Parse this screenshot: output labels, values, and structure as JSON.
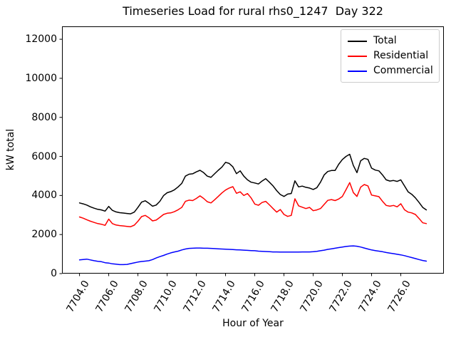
{
  "chart_data": {
    "type": "line",
    "title": "Timeseries Load for rural rhs0_1247  Day 322",
    "xlabel": "Hour of Year",
    "ylabel": "kW total",
    "xlim": [
      7702.8,
      7728.95
    ],
    "ylim": [
      0,
      12660
    ],
    "grid": false,
    "legend_position": "upper right",
    "x_start": 7704.0,
    "x_step": 0.25,
    "x_ticks": [
      {
        "value": 7704,
        "label": "7704.0"
      },
      {
        "value": 7706,
        "label": "7706.0"
      },
      {
        "value": 7708,
        "label": "7708.0"
      },
      {
        "value": 7710,
        "label": "7710.0"
      },
      {
        "value": 7712,
        "label": "7712.0"
      },
      {
        "value": 7714,
        "label": "7714.0"
      },
      {
        "value": 7716,
        "label": "7716.0"
      },
      {
        "value": 7718,
        "label": "7718.0"
      },
      {
        "value": 7720,
        "label": "7720.0"
      },
      {
        "value": 7722,
        "label": "7722.0"
      },
      {
        "value": 7724,
        "label": "7724.0"
      },
      {
        "value": 7726,
        "label": "7726.0"
      }
    ],
    "y_ticks": [
      {
        "value": 0,
        "label": "0"
      },
      {
        "value": 2000,
        "label": "2000"
      },
      {
        "value": 4000,
        "label": "4000"
      },
      {
        "value": 6000,
        "label": "6000"
      },
      {
        "value": 8000,
        "label": "8000"
      },
      {
        "value": 10000,
        "label": "10000"
      },
      {
        "value": 12000,
        "label": "12000"
      }
    ],
    "series": [
      {
        "name": "Total",
        "color": "#000000",
        "values": [
          3620,
          3570,
          3510,
          3420,
          3350,
          3290,
          3260,
          3200,
          3440,
          3240,
          3160,
          3120,
          3100,
          3080,
          3060,
          3150,
          3390,
          3660,
          3730,
          3600,
          3450,
          3510,
          3700,
          3990,
          4140,
          4200,
          4290,
          4440,
          4620,
          4990,
          5090,
          5110,
          5210,
          5290,
          5170,
          4990,
          4930,
          5110,
          5290,
          5450,
          5700,
          5640,
          5470,
          5120,
          5260,
          4990,
          4800,
          4680,
          4640,
          4590,
          4740,
          4860,
          4680,
          4490,
          4250,
          4050,
          3950,
          4070,
          4100,
          4750,
          4440,
          4480,
          4420,
          4380,
          4310,
          4400,
          4680,
          5050,
          5230,
          5280,
          5280,
          5600,
          5840,
          6000,
          6110,
          5540,
          5170,
          5780,
          5900,
          5850,
          5400,
          5300,
          5260,
          5050,
          4800,
          4740,
          4770,
          4720,
          4800,
          4490,
          4190,
          4060,
          3880,
          3640,
          3390,
          3260
        ]
      },
      {
        "name": "Residential",
        "color": "#ff0000",
        "values": [
          2900,
          2840,
          2760,
          2680,
          2620,
          2560,
          2530,
          2470,
          2790,
          2560,
          2490,
          2460,
          2440,
          2420,
          2400,
          2480,
          2680,
          2920,
          2980,
          2860,
          2700,
          2740,
          2880,
          3030,
          3090,
          3110,
          3170,
          3270,
          3390,
          3700,
          3760,
          3740,
          3850,
          3980,
          3850,
          3680,
          3620,
          3780,
          3950,
          4130,
          4280,
          4380,
          4450,
          4110,
          4190,
          4000,
          4100,
          3880,
          3560,
          3500,
          3640,
          3700,
          3520,
          3330,
          3150,
          3280,
          3030,
          2930,
          2980,
          3830,
          3470,
          3400,
          3330,
          3390,
          3220,
          3260,
          3330,
          3540,
          3750,
          3790,
          3740,
          3820,
          3950,
          4300,
          4660,
          4150,
          3950,
          4430,
          4560,
          4490,
          4020,
          3980,
          3940,
          3700,
          3490,
          3450,
          3490,
          3420,
          3580,
          3270,
          3150,
          3110,
          3030,
          2820,
          2600,
          2560
        ]
      },
      {
        "name": "Commercial",
        "color": "#0000ff",
        "values": [
          700,
          720,
          740,
          700,
          660,
          630,
          610,
          560,
          540,
          500,
          480,
          460,
          460,
          470,
          510,
          550,
          590,
          620,
          640,
          660,
          720,
          800,
          870,
          930,
          1000,
          1060,
          1110,
          1150,
          1210,
          1260,
          1290,
          1300,
          1310,
          1310,
          1300,
          1300,
          1290,
          1280,
          1270,
          1260,
          1250,
          1240,
          1230,
          1220,
          1210,
          1200,
          1190,
          1180,
          1170,
          1150,
          1140,
          1130,
          1120,
          1110,
          1110,
          1100,
          1100,
          1100,
          1100,
          1100,
          1100,
          1110,
          1110,
          1110,
          1120,
          1140,
          1170,
          1200,
          1240,
          1270,
          1300,
          1330,
          1360,
          1390,
          1410,
          1420,
          1400,
          1360,
          1310,
          1260,
          1210,
          1180,
          1150,
          1120,
          1080,
          1050,
          1020,
          990,
          960,
          920,
          870,
          820,
          770,
          720,
          670,
          640
        ]
      }
    ]
  }
}
